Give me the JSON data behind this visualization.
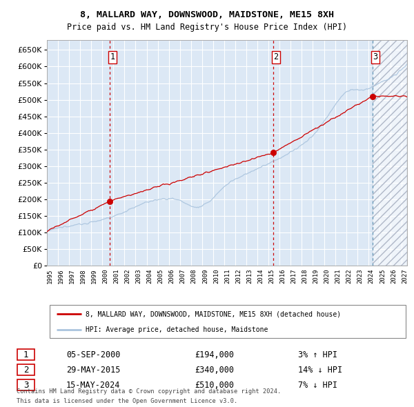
{
  "title": "8, MALLARD WAY, DOWNSWOOD, MAIDSTONE, ME15 8XH",
  "subtitle": "Price paid vs. HM Land Registry's House Price Index (HPI)",
  "legend_line1": "8, MALLARD WAY, DOWNSWOOD, MAIDSTONE, ME15 8XH (detached house)",
  "legend_line2": "HPI: Average price, detached house, Maidstone",
  "footer1": "Contains HM Land Registry data © Crown copyright and database right 2024.",
  "footer2": "This data is licensed under the Open Government Licence v3.0.",
  "sales": [
    {
      "label": "1",
      "date": "05-SEP-2000",
      "price": 194000,
      "pct": "3%",
      "dir": "↑",
      "x_year": 2000.67
    },
    {
      "label": "2",
      "date": "29-MAY-2015",
      "price": 340000,
      "pct": "14%",
      "dir": "↓",
      "x_year": 2015.41
    },
    {
      "label": "3",
      "date": "15-MAY-2024",
      "price": 510000,
      "pct": "7%",
      "dir": "↓",
      "x_year": 2024.37
    }
  ],
  "hpi_color": "#aac4de",
  "price_color": "#cc0000",
  "dot_color": "#cc0000",
  "vline_color_red": "#cc0000",
  "vline_color_blue": "#6699bb",
  "plot_bg": "#dce8f5",
  "grid_color": "#c8d8e8",
  "ylim": [
    0,
    680000
  ],
  "yticks": [
    0,
    50000,
    100000,
    150000,
    200000,
    250000,
    300000,
    350000,
    400000,
    450000,
    500000,
    550000,
    600000,
    650000
  ],
  "xlim_start": 1995.0,
  "xlim_end": 2027.5,
  "x_years": [
    1995,
    1996,
    1997,
    1998,
    1999,
    2000,
    2001,
    2002,
    2003,
    2004,
    2005,
    2006,
    2007,
    2008,
    2009,
    2010,
    2011,
    2012,
    2013,
    2014,
    2015,
    2016,
    2017,
    2018,
    2019,
    2020,
    2021,
    2022,
    2023,
    2024,
    2025,
    2026,
    2027
  ]
}
